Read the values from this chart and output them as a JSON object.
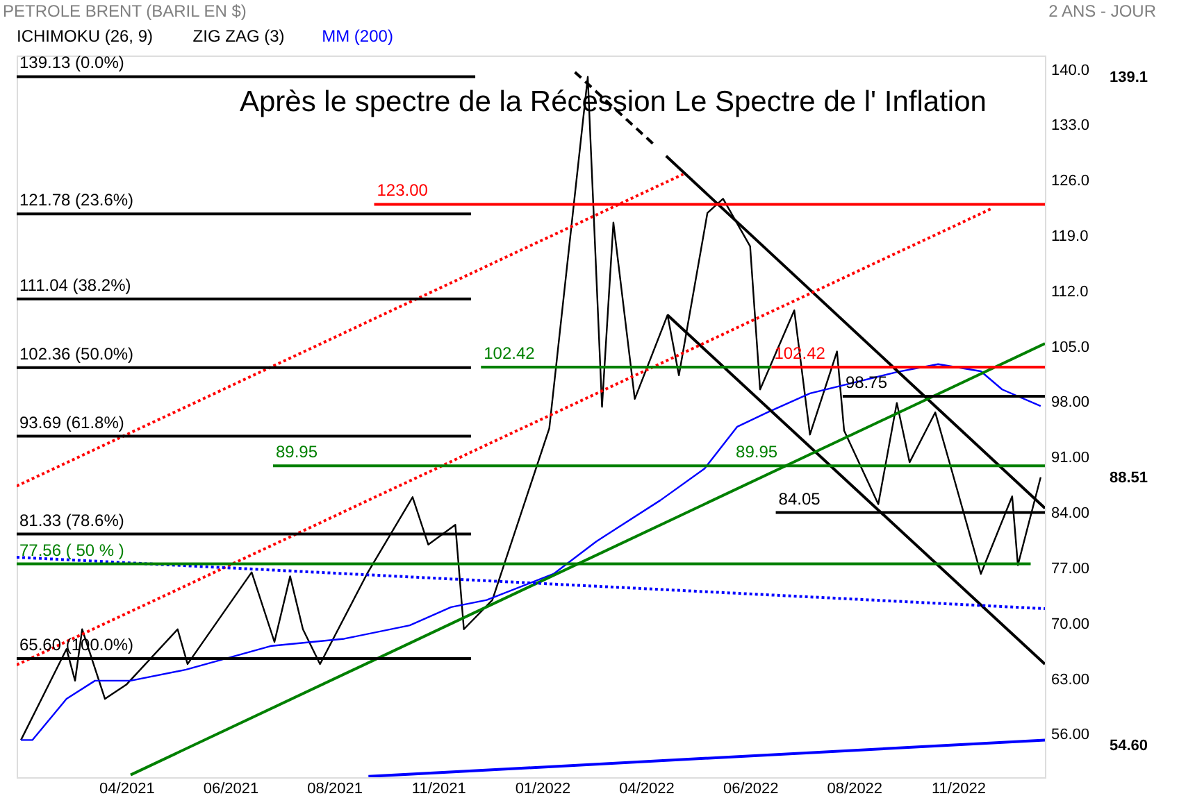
{
  "chart_data": {
    "type": "line",
    "title": "Après le spectre de la Récession   Le Spectre de l' Inflation",
    "subtitle": "2 ANS - JOUR",
    "annotations": [
      "PETROLE BRENT (BARIL EN $)",
      "ICHIMOKU (26, 9)",
      "ZIG ZAG (3)",
      {
        "text": "89.95",
        "x": "2022-06-01",
        "y": 89.95
      }
    ],
    "y2lim": [
      50.6,
      141.8
    ],
    "y2ticks": [
      {
        "value": 54.6,
        "label": "54.60"
      },
      {
        "value": 88.51,
        "label": "88.51"
      },
      {
        "value": 139.1,
        "label": "139.1"
      }
    ],
    "xlim": [
      "2021-01-14",
      "2023-01-06"
    ],
    "xticks": [
      {
        "value": "2021-04-01",
        "label": "04/2021"
      },
      {
        "value": "2021-06-13",
        "label": "06/2021"
      },
      {
        "value": "2021-08-25",
        "label": "08/2021"
      },
      {
        "value": "2021-11-06",
        "label": "11/2021"
      },
      {
        "value": "2022-01-18",
        "label": "01/2022"
      },
      {
        "value": "2022-04-01",
        "label": "04/2022"
      },
      {
        "value": "2022-06-13",
        "label": "06/2022"
      },
      {
        "value": "2022-08-25",
        "label": "08/2022"
      },
      {
        "value": "2022-11-06",
        "label": "11/2022"
      }
    ],
    "ylim": [
      50.6,
      141.8
    ],
    "yticks": [
      {
        "value": 56,
        "label": "56.00"
      },
      {
        "value": 63,
        "label": "63.00"
      },
      {
        "value": 70,
        "label": "70.00"
      },
      {
        "value": 77,
        "label": "77.00"
      },
      {
        "value": 84,
        "label": "84.00"
      },
      {
        "value": 91,
        "label": "91.00"
      },
      {
        "value": 98,
        "label": "98.00"
      },
      {
        "value": 105,
        "label": "105.0"
      },
      {
        "value": 112,
        "label": "112.0"
      },
      {
        "value": 119,
        "label": "119.0"
      },
      {
        "value": 126,
        "label": "126.0"
      },
      {
        "value": 133,
        "label": "133.0"
      },
      {
        "value": 140,
        "label": "140.0"
      }
    ],
    "legend": "top left",
    "series": [
      {
        "color": "#000000",
        "x": [
          "2021-01-17",
          "2021-02-18",
          "2021-02-24",
          "2021-03-01",
          "2021-03-17",
          "2021-04-01",
          "2021-05-07",
          "2021-05-14",
          "2021-06-28",
          "2021-07-14",
          "2021-07-25",
          "2021-08-03",
          "2021-08-15",
          "2021-09-17",
          "2021-10-19",
          "2021-10-30",
          "2021-11-18",
          "2021-11-24",
          "2021-12-14",
          "2022-01-23",
          "2022-02-19",
          "2022-03-01",
          "2022-03-09",
          "2022-03-24",
          "2022-04-16",
          "2022-04-24",
          "2022-05-14",
          "2022-05-25",
          "2022-06-13",
          "2022-06-20",
          "2022-07-14",
          "2022-07-25",
          "2022-08-13",
          "2022-08-18",
          "2022-09-11",
          "2022-09-24",
          "2022-10-03",
          "2022-10-21",
          "2022-11-02",
          "2022-11-22",
          "2022-12-14",
          "2022-12-18",
          "2023-01-03"
        ],
        "values": [
          55.3,
          66.8,
          62.8,
          69.3,
          60.5,
          62.3,
          69.3,
          64.9,
          76.5,
          67.7,
          76.0,
          69.3,
          64.9,
          76.3,
          86.0,
          80.0,
          82.5,
          69.3,
          73.0,
          94.7,
          139.1,
          97.4,
          120.7,
          98.4,
          109.0,
          101.4,
          121.9,
          123.7,
          117.7,
          99.6,
          109.6,
          93.9,
          104.4,
          94.4,
          85.1,
          97.9,
          90.4,
          96.7,
          89.1,
          76.3,
          86.1,
          77.4,
          88.51
        ]
      },
      {
        "name": "MM (200)",
        "color": "#0000ff",
        "x": [
          "2021-01-17",
          "2021-01-25",
          "2021-02-18",
          "2021-03-10",
          "2021-04-04",
          "2021-05-13",
          "2021-07-12",
          "2021-09-01",
          "2021-10-17",
          "2021-11-15",
          "2021-12-10",
          "2022-01-26",
          "2022-02-25",
          "2022-04-11",
          "2022-05-12",
          "2022-06-04",
          "2022-06-25",
          "2022-07-25",
          "2022-09-24",
          "2022-10-23",
          "2022-11-22",
          "2022-12-07",
          "2023-01-03"
        ],
        "values": [
          55.3,
          55.3,
          60.5,
          62.8,
          62.8,
          64.2,
          67.2,
          68.1,
          69.8,
          72.1,
          73.0,
          76.3,
          80.4,
          85.6,
          89.6,
          94.9,
          96.7,
          99.1,
          101.8,
          102.8,
          101.9,
          99.6,
          97.5
        ]
      },
      {
        "color": "#000000",
        "line_style": "dashed",
        "x": [
          "2022-02-10",
          "2022-04-08"
        ],
        "values": [
          139.7,
          130.3
        ]
      },
      {
        "color": "#000000",
        "x": [
          "2022-04-15",
          "2023-01-06"
        ],
        "values": [
          129.1,
          84.6
        ]
      },
      {
        "color": "#000000",
        "x": [
          "2022-04-16",
          "2023-01-06"
        ],
        "values": [
          109.0,
          64.9
        ]
      },
      {
        "color": "#008000",
        "x": [
          "2021-04-04",
          "2023-01-06"
        ],
        "values": [
          50.9,
          105.4
        ]
      },
      {
        "color": "#ff0000",
        "line_style": "dotted",
        "x": [
          "2021-01-14",
          "2022-11-30"
        ],
        "values": [
          64.8,
          122.5
        ]
      },
      {
        "color": "#ff0000",
        "line_style": "dotted",
        "x": [
          "2021-01-14",
          "2022-04-27"
        ],
        "values": [
          87.4,
          126.8
        ]
      },
      {
        "color": "#0000ff",
        "line_style": "dotted",
        "x": [
          "2021-01-14",
          "2023-01-06"
        ],
        "values": [
          78.4,
          71.9
        ]
      },
      {
        "color": "#0000ff",
        "x": [
          "2021-09-18",
          "2023-01-06"
        ],
        "values": [
          50.7,
          55.3
        ]
      },
      {
        "name": "139.13  (0.0%)",
        "color": "#000000",
        "x": [
          "2021-01-14",
          "2021-12-02"
        ],
        "values": [
          139.13,
          139.13
        ]
      },
      {
        "name": "121.78  (23.6%)",
        "color": "#000000",
        "x": [
          "2021-01-14",
          "2021-11-29"
        ],
        "values": [
          121.78,
          121.78
        ]
      },
      {
        "name": "111.04  (38.2%)",
        "color": "#000000",
        "x": [
          "2021-01-14",
          "2021-11-29"
        ],
        "values": [
          111.04,
          111.04
        ]
      },
      {
        "name": "102.36  (50.0%)",
        "color": "#000000",
        "x": [
          "2021-01-14",
          "2021-11-29"
        ],
        "values": [
          102.36,
          102.36
        ]
      },
      {
        "name": "93.69  (61.8%)",
        "color": "#000000",
        "x": [
          "2021-01-14",
          "2021-11-29"
        ],
        "values": [
          93.69,
          93.69
        ]
      },
      {
        "name": "81.33  (78.6%)",
        "color": "#000000",
        "x": [
          "2021-01-14",
          "2021-11-29"
        ],
        "values": [
          81.33,
          81.33
        ]
      },
      {
        "name": "65.60  (100.0%)",
        "color": "#000000",
        "x": [
          "2021-01-14",
          "2021-11-29"
        ],
        "values": [
          65.6,
          65.6
        ]
      },
      {
        "name": "123.00",
        "color": "#ff0000",
        "x": [
          "2021-09-22",
          "2023-01-06"
        ],
        "values": [
          123.0,
          123.0
        ]
      },
      {
        "name": "102.42",
        "color": "#008000",
        "x": [
          "2021-12-06",
          "2022-06-28"
        ],
        "values": [
          102.42,
          102.42
        ]
      },
      {
        "name": "102.42",
        "color": "#ff0000",
        "x": [
          "2022-06-28",
          "2023-01-06"
        ],
        "values": [
          102.42,
          102.42
        ]
      },
      {
        "name": "89.95",
        "color": "#008000",
        "x": [
          "2021-07-13",
          "2023-01-06"
        ],
        "values": [
          89.95,
          89.95
        ]
      },
      {
        "name": "84.05",
        "color": "#000000",
        "x": [
          "2022-07-01",
          "2023-01-06"
        ],
        "values": [
          84.05,
          84.05
        ]
      },
      {
        "name": "98.75",
        "color": "#000000",
        "x": [
          "2022-08-17",
          "2023-01-06"
        ],
        "values": [
          98.75,
          98.75
        ]
      },
      {
        "name": "77.56 ( 50 % )",
        "color": "#008000",
        "x": [
          "2021-01-14",
          "2022-12-27"
        ],
        "values": [
          77.56,
          77.56
        ]
      }
    ]
  }
}
